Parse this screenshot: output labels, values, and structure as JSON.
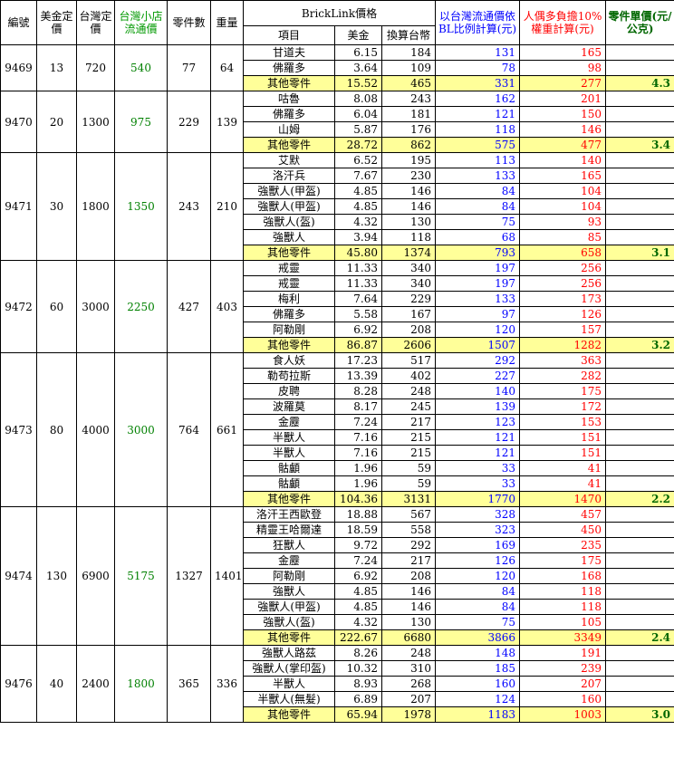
{
  "headers": {
    "id": "編號",
    "usd_price": "美金定價",
    "twd_price": "台灣定價",
    "store_price": "台灣小店流通價",
    "parts": "零件數",
    "weight": "重量",
    "bricklink": "BrickLink價格",
    "item": "項目",
    "usd": "美金",
    "twd": "換算台幣",
    "bl_ratio": "以台灣流通價依BL比例計算(元)",
    "weighted": "人偶多負擔10%權重計算(元)",
    "unit_price": "零件單價(元/公克)"
  },
  "sets": [
    {
      "id": "9469",
      "usd_price": "13",
      "twd_price": "720",
      "store_price": "540",
      "parts": "77",
      "weight": "64",
      "unit_price": "4.3",
      "rows": [
        {
          "item": "甘道夫",
          "usd": "6.15",
          "twd": "184",
          "ratio": "131",
          "weighted": "165"
        },
        {
          "item": "佛羅多",
          "usd": "3.64",
          "twd": "109",
          "ratio": "78",
          "weighted": "98"
        },
        {
          "item": "其他零件",
          "usd": "15.52",
          "twd": "465",
          "ratio": "331",
          "weighted": "277"
        }
      ]
    },
    {
      "id": "9470",
      "usd_price": "20",
      "twd_price": "1300",
      "store_price": "975",
      "parts": "229",
      "weight": "139",
      "unit_price": "3.4",
      "rows": [
        {
          "item": "咕魯",
          "usd": "8.08",
          "twd": "243",
          "ratio": "162",
          "weighted": "201"
        },
        {
          "item": "佛羅多",
          "usd": "6.04",
          "twd": "181",
          "ratio": "121",
          "weighted": "150"
        },
        {
          "item": "山姆",
          "usd": "5.87",
          "twd": "176",
          "ratio": "118",
          "weighted": "146"
        },
        {
          "item": "其他零件",
          "usd": "28.72",
          "twd": "862",
          "ratio": "575",
          "weighted": "477"
        }
      ]
    },
    {
      "id": "9471",
      "usd_price": "30",
      "twd_price": "1800",
      "store_price": "1350",
      "parts": "243",
      "weight": "210",
      "unit_price": "3.1",
      "rows": [
        {
          "item": "艾默",
          "usd": "6.52",
          "twd": "195",
          "ratio": "113",
          "weighted": "140"
        },
        {
          "item": "洛汗兵",
          "usd": "7.67",
          "twd": "230",
          "ratio": "133",
          "weighted": "165"
        },
        {
          "item": "強獸人(甲盔)",
          "usd": "4.85",
          "twd": "146",
          "ratio": "84",
          "weighted": "104"
        },
        {
          "item": "強獸人(甲盔)",
          "usd": "4.85",
          "twd": "146",
          "ratio": "84",
          "weighted": "104"
        },
        {
          "item": "強獸人(盔)",
          "usd": "4.32",
          "twd": "130",
          "ratio": "75",
          "weighted": "93"
        },
        {
          "item": "強獸人",
          "usd": "3.94",
          "twd": "118",
          "ratio": "68",
          "weighted": "85"
        },
        {
          "item": "其他零件",
          "usd": "45.80",
          "twd": "1374",
          "ratio": "793",
          "weighted": "658"
        }
      ]
    },
    {
      "id": "9472",
      "usd_price": "60",
      "twd_price": "3000",
      "store_price": "2250",
      "parts": "427",
      "weight": "403",
      "unit_price": "3.2",
      "rows": [
        {
          "item": "戒靈",
          "usd": "11.33",
          "twd": "340",
          "ratio": "197",
          "weighted": "256"
        },
        {
          "item": "戒靈",
          "usd": "11.33",
          "twd": "340",
          "ratio": "197",
          "weighted": "256"
        },
        {
          "item": "梅利",
          "usd": "7.64",
          "twd": "229",
          "ratio": "133",
          "weighted": "173"
        },
        {
          "item": "佛羅多",
          "usd": "5.58",
          "twd": "167",
          "ratio": "97",
          "weighted": "126"
        },
        {
          "item": "阿勒剛",
          "usd": "6.92",
          "twd": "208",
          "ratio": "120",
          "weighted": "157"
        },
        {
          "item": "其他零件",
          "usd": "86.87",
          "twd": "2606",
          "ratio": "1507",
          "weighted": "1282"
        }
      ]
    },
    {
      "id": "9473",
      "usd_price": "80",
      "twd_price": "4000",
      "store_price": "3000",
      "parts": "764",
      "weight": "661",
      "unit_price": "2.2",
      "rows": [
        {
          "item": "食人妖",
          "usd": "17.23",
          "twd": "517",
          "ratio": "292",
          "weighted": "363"
        },
        {
          "item": "勒苟拉斯",
          "usd": "13.39",
          "twd": "402",
          "ratio": "227",
          "weighted": "282"
        },
        {
          "item": "皮聘",
          "usd": "8.28",
          "twd": "248",
          "ratio": "140",
          "weighted": "175"
        },
        {
          "item": "波羅莫",
          "usd": "8.17",
          "twd": "245",
          "ratio": "139",
          "weighted": "172"
        },
        {
          "item": "金靂",
          "usd": "7.24",
          "twd": "217",
          "ratio": "123",
          "weighted": "153"
        },
        {
          "item": "半獸人",
          "usd": "7.16",
          "twd": "215",
          "ratio": "121",
          "weighted": "151"
        },
        {
          "item": "半獸人",
          "usd": "7.16",
          "twd": "215",
          "ratio": "121",
          "weighted": "151"
        },
        {
          "item": "骷顱",
          "usd": "1.96",
          "twd": "59",
          "ratio": "33",
          "weighted": "41"
        },
        {
          "item": "骷顱",
          "usd": "1.96",
          "twd": "59",
          "ratio": "33",
          "weighted": "41"
        },
        {
          "item": "其他零件",
          "usd": "104.36",
          "twd": "3131",
          "ratio": "1770",
          "weighted": "1470"
        }
      ]
    },
    {
      "id": "9474",
      "usd_price": "130",
      "twd_price": "6900",
      "store_price": "5175",
      "parts": "1327",
      "weight": "1401",
      "unit_price": "2.4",
      "rows": [
        {
          "item": "洛汗王西歐登",
          "usd": "18.88",
          "twd": "567",
          "ratio": "328",
          "weighted": "457"
        },
        {
          "item": "精靈王哈爾達",
          "usd": "18.59",
          "twd": "558",
          "ratio": "323",
          "weighted": "450"
        },
        {
          "item": "狂獸人",
          "usd": "9.72",
          "twd": "292",
          "ratio": "169",
          "weighted": "235"
        },
        {
          "item": "金靂",
          "usd": "7.24",
          "twd": "217",
          "ratio": "126",
          "weighted": "175"
        },
        {
          "item": "阿勒剛",
          "usd": "6.92",
          "twd": "208",
          "ratio": "120",
          "weighted": "168"
        },
        {
          "item": "強獸人",
          "usd": "4.85",
          "twd": "146",
          "ratio": "84",
          "weighted": "118"
        },
        {
          "item": "強獸人(甲盔)",
          "usd": "4.85",
          "twd": "146",
          "ratio": "84",
          "weighted": "118"
        },
        {
          "item": "強獸人(盔)",
          "usd": "4.32",
          "twd": "130",
          "ratio": "75",
          "weighted": "105"
        },
        {
          "item": "其他零件",
          "usd": "222.67",
          "twd": "6680",
          "ratio": "3866",
          "weighted": "3349"
        }
      ]
    },
    {
      "id": "9476",
      "usd_price": "40",
      "twd_price": "2400",
      "store_price": "1800",
      "parts": "365",
      "weight": "336",
      "unit_price": "3.0",
      "rows": [
        {
          "item": "強獸人路茲",
          "usd": "8.26",
          "twd": "248",
          "ratio": "148",
          "weighted": "191"
        },
        {
          "item": "強獸人(掌印盔)",
          "usd": "10.32",
          "twd": "310",
          "ratio": "185",
          "weighted": "239"
        },
        {
          "item": "半獸人",
          "usd": "8.93",
          "twd": "268",
          "ratio": "160",
          "weighted": "207"
        },
        {
          "item": "半獸人(無髮)",
          "usd": "6.89",
          "twd": "207",
          "ratio": "124",
          "weighted": "160"
        },
        {
          "item": "其他零件",
          "usd": "65.94",
          "twd": "1978",
          "ratio": "1183",
          "weighted": "1003"
        }
      ]
    }
  ]
}
